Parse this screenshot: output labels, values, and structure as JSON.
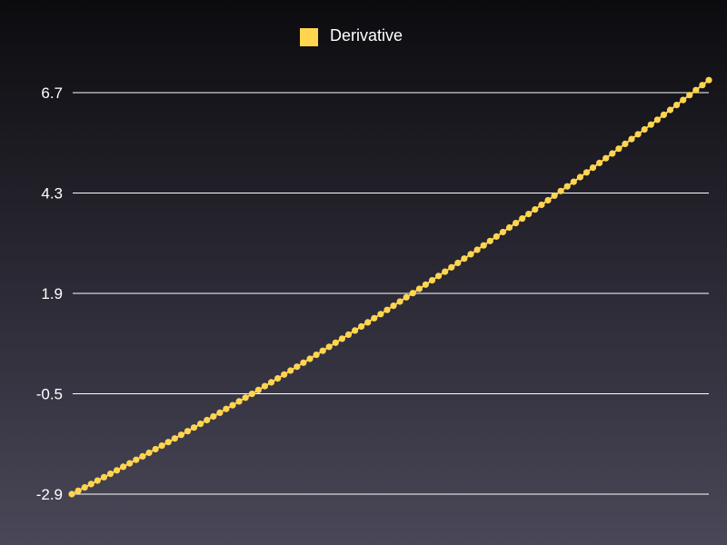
{
  "chart_data": {
    "type": "line",
    "series": [
      {
        "name": "Derivative",
        "color": "#ffd54f",
        "y_start": -2.9,
        "y_end": 7.0,
        "point_count": 100
      }
    ],
    "y_ticks": [
      "-2.9",
      "-0.5",
      "1.9",
      "4.3",
      "6.7"
    ],
    "ylim": [
      -2.9,
      6.7
    ],
    "grid": true,
    "legend_position": "top-center",
    "markers": "filled circles"
  }
}
